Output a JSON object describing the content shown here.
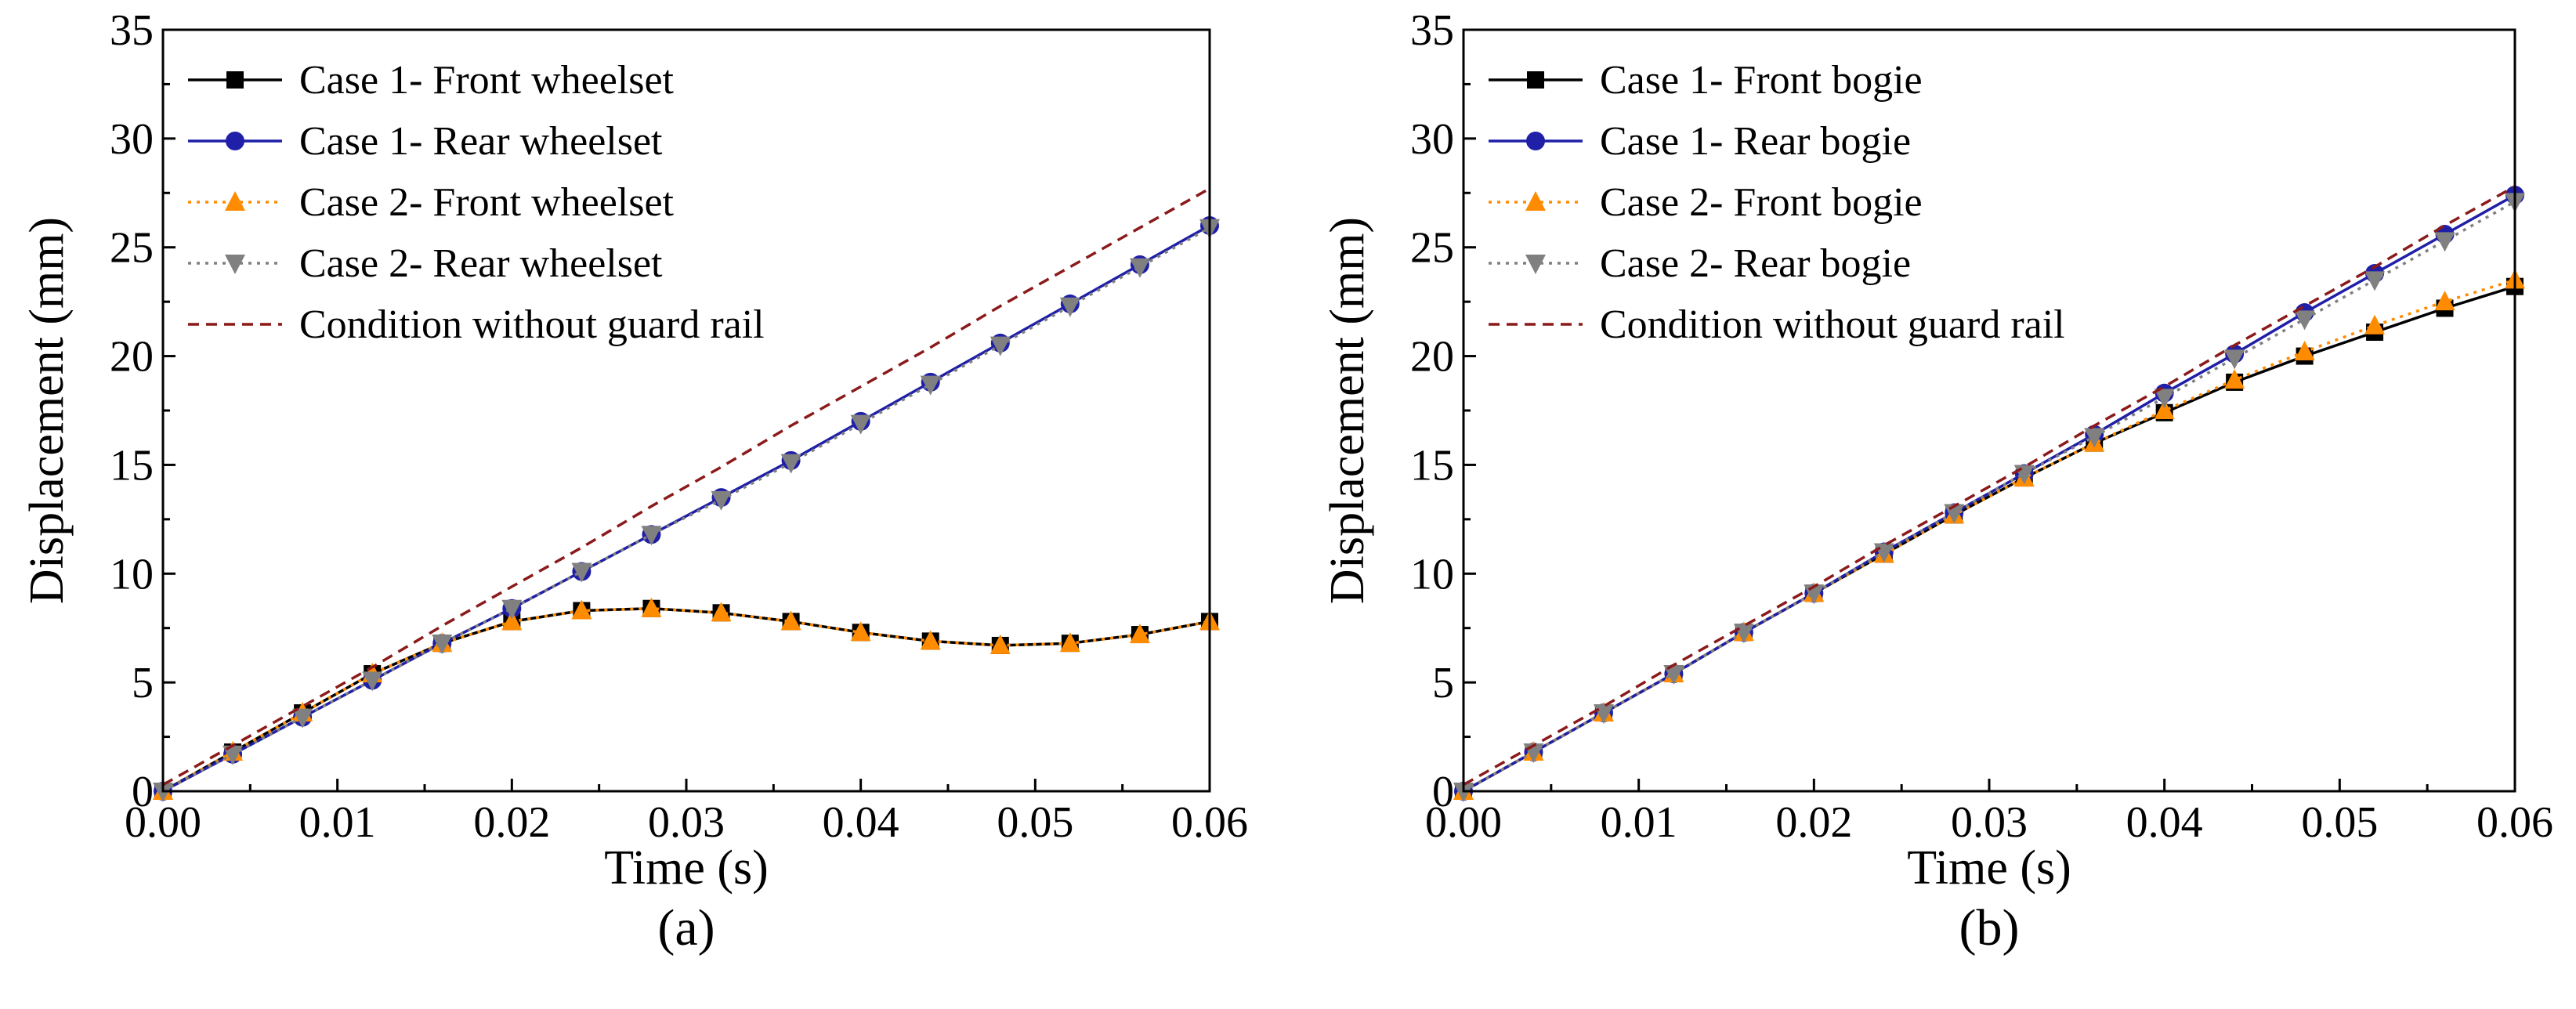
{
  "figure": {
    "panels": [
      "(a)",
      "(b)"
    ]
  },
  "colors": {
    "case1_front": "#000000",
    "case1_rear": "#1f1fa8",
    "case2_front": "#ff8c00",
    "case2_rear": "#808080",
    "no_guard": "#8b1a1a"
  },
  "chart_data": [
    {
      "type": "line",
      "panel_label": "(a)",
      "xlabel": "Time (s)",
      "ylabel": "Displacement (mm)",
      "xlim": [
        0,
        0.06
      ],
      "ylim": [
        0,
        35
      ],
      "xticks": [
        "0.00",
        "0.01",
        "0.02",
        "0.03",
        "0.04",
        "0.05",
        "0.06"
      ],
      "yticks": [
        "0",
        "5",
        "10",
        "15",
        "20",
        "25",
        "30",
        "35"
      ],
      "legend_position": "top-left",
      "x": [
        0,
        0.004,
        0.008,
        0.012,
        0.016,
        0.02,
        0.024,
        0.028,
        0.032,
        0.036,
        0.04,
        0.044,
        0.048,
        0.052,
        0.056,
        0.06
      ],
      "series": [
        {
          "name": "Case 1- Front wheelset",
          "color_key": "case1_front",
          "marker": "square",
          "dash": "solid",
          "values": [
            0,
            1.8,
            3.6,
            5.4,
            6.8,
            7.8,
            8.3,
            8.4,
            8.2,
            7.8,
            7.3,
            6.9,
            6.7,
            6.8,
            7.2,
            7.8
          ]
        },
        {
          "name": "Case 1- Rear wheelset",
          "color_key": "case1_rear",
          "marker": "circle",
          "dash": "solid",
          "values": [
            0,
            1.7,
            3.4,
            5.1,
            6.8,
            8.4,
            10.1,
            11.8,
            13.5,
            15.2,
            17.0,
            18.8,
            20.6,
            22.4,
            24.2,
            26.0
          ]
        },
        {
          "name": "Case 2- Front wheelset",
          "color_key": "case2_front",
          "marker": "triangle-up",
          "dash": "dotted",
          "values": [
            0,
            1.8,
            3.6,
            5.4,
            6.8,
            7.8,
            8.3,
            8.4,
            8.2,
            7.8,
            7.3,
            6.9,
            6.7,
            6.8,
            7.2,
            7.8
          ]
        },
        {
          "name": "Case 2- Rear wheelset",
          "color_key": "case2_rear",
          "marker": "triangle-down",
          "dash": "dotted",
          "values": [
            0,
            1.7,
            3.4,
            5.1,
            6.8,
            8.4,
            10.1,
            11.8,
            13.4,
            15.1,
            16.9,
            18.7,
            20.5,
            22.3,
            24.1,
            25.9
          ]
        },
        {
          "name": "Condition without guard rail",
          "color_key": "no_guard",
          "marker": "none",
          "dash": "dashed",
          "values": [
            0.3,
            2.1,
            3.9,
            5.7,
            7.6,
            9.4,
            11.2,
            13.1,
            14.9,
            16.8,
            18.6,
            20.4,
            22.3,
            24.1,
            25.9,
            27.7
          ]
        }
      ]
    },
    {
      "type": "line",
      "panel_label": "(b)",
      "xlabel": "Time (s)",
      "ylabel": "Displacement (mm)",
      "xlim": [
        0,
        0.06
      ],
      "ylim": [
        0,
        35
      ],
      "xticks": [
        "0.00",
        "0.01",
        "0.02",
        "0.03",
        "0.04",
        "0.05",
        "0.06"
      ],
      "yticks": [
        "0",
        "5",
        "10",
        "15",
        "20",
        "25",
        "30",
        "35"
      ],
      "legend_position": "top-left",
      "x": [
        0,
        0.004,
        0.008,
        0.012,
        0.016,
        0.02,
        0.024,
        0.028,
        0.032,
        0.036,
        0.04,
        0.044,
        0.048,
        0.052,
        0.056,
        0.06
      ],
      "series": [
        {
          "name": "Case 1- Front bogie",
          "color_key": "case1_front",
          "marker": "square",
          "dash": "solid",
          "values": [
            0,
            1.8,
            3.6,
            5.4,
            7.3,
            9.1,
            10.9,
            12.7,
            14.4,
            16.0,
            17.4,
            18.8,
            20.0,
            21.1,
            22.2,
            23.2
          ]
        },
        {
          "name": "Case 1- Rear bogie",
          "color_key": "case1_rear",
          "marker": "circle",
          "dash": "solid",
          "values": [
            0,
            1.8,
            3.6,
            5.4,
            7.3,
            9.1,
            11.0,
            12.8,
            14.6,
            16.4,
            18.3,
            20.1,
            22.0,
            23.8,
            25.6,
            27.4
          ]
        },
        {
          "name": "Case 2- Front bogie",
          "color_key": "case2_front",
          "marker": "triangle-up",
          "dash": "dotted",
          "values": [
            0,
            1.8,
            3.6,
            5.4,
            7.3,
            9.1,
            10.9,
            12.7,
            14.4,
            16.0,
            17.5,
            18.9,
            20.2,
            21.4,
            22.5,
            23.5
          ]
        },
        {
          "name": "Case 2- Rear bogie",
          "color_key": "case2_rear",
          "marker": "triangle-down",
          "dash": "dotted",
          "values": [
            0,
            1.8,
            3.6,
            5.4,
            7.3,
            9.1,
            11.0,
            12.8,
            14.6,
            16.3,
            18.1,
            19.9,
            21.7,
            23.5,
            25.3,
            27.1
          ]
        },
        {
          "name": "Condition without guard rail",
          "color_key": "no_guard",
          "marker": "none",
          "dash": "dashed",
          "values": [
            0.3,
            2.1,
            3.9,
            5.8,
            7.6,
            9.4,
            11.3,
            13.1,
            14.9,
            16.8,
            18.6,
            20.5,
            22.3,
            24.1,
            26.0,
            27.8
          ]
        }
      ]
    }
  ]
}
